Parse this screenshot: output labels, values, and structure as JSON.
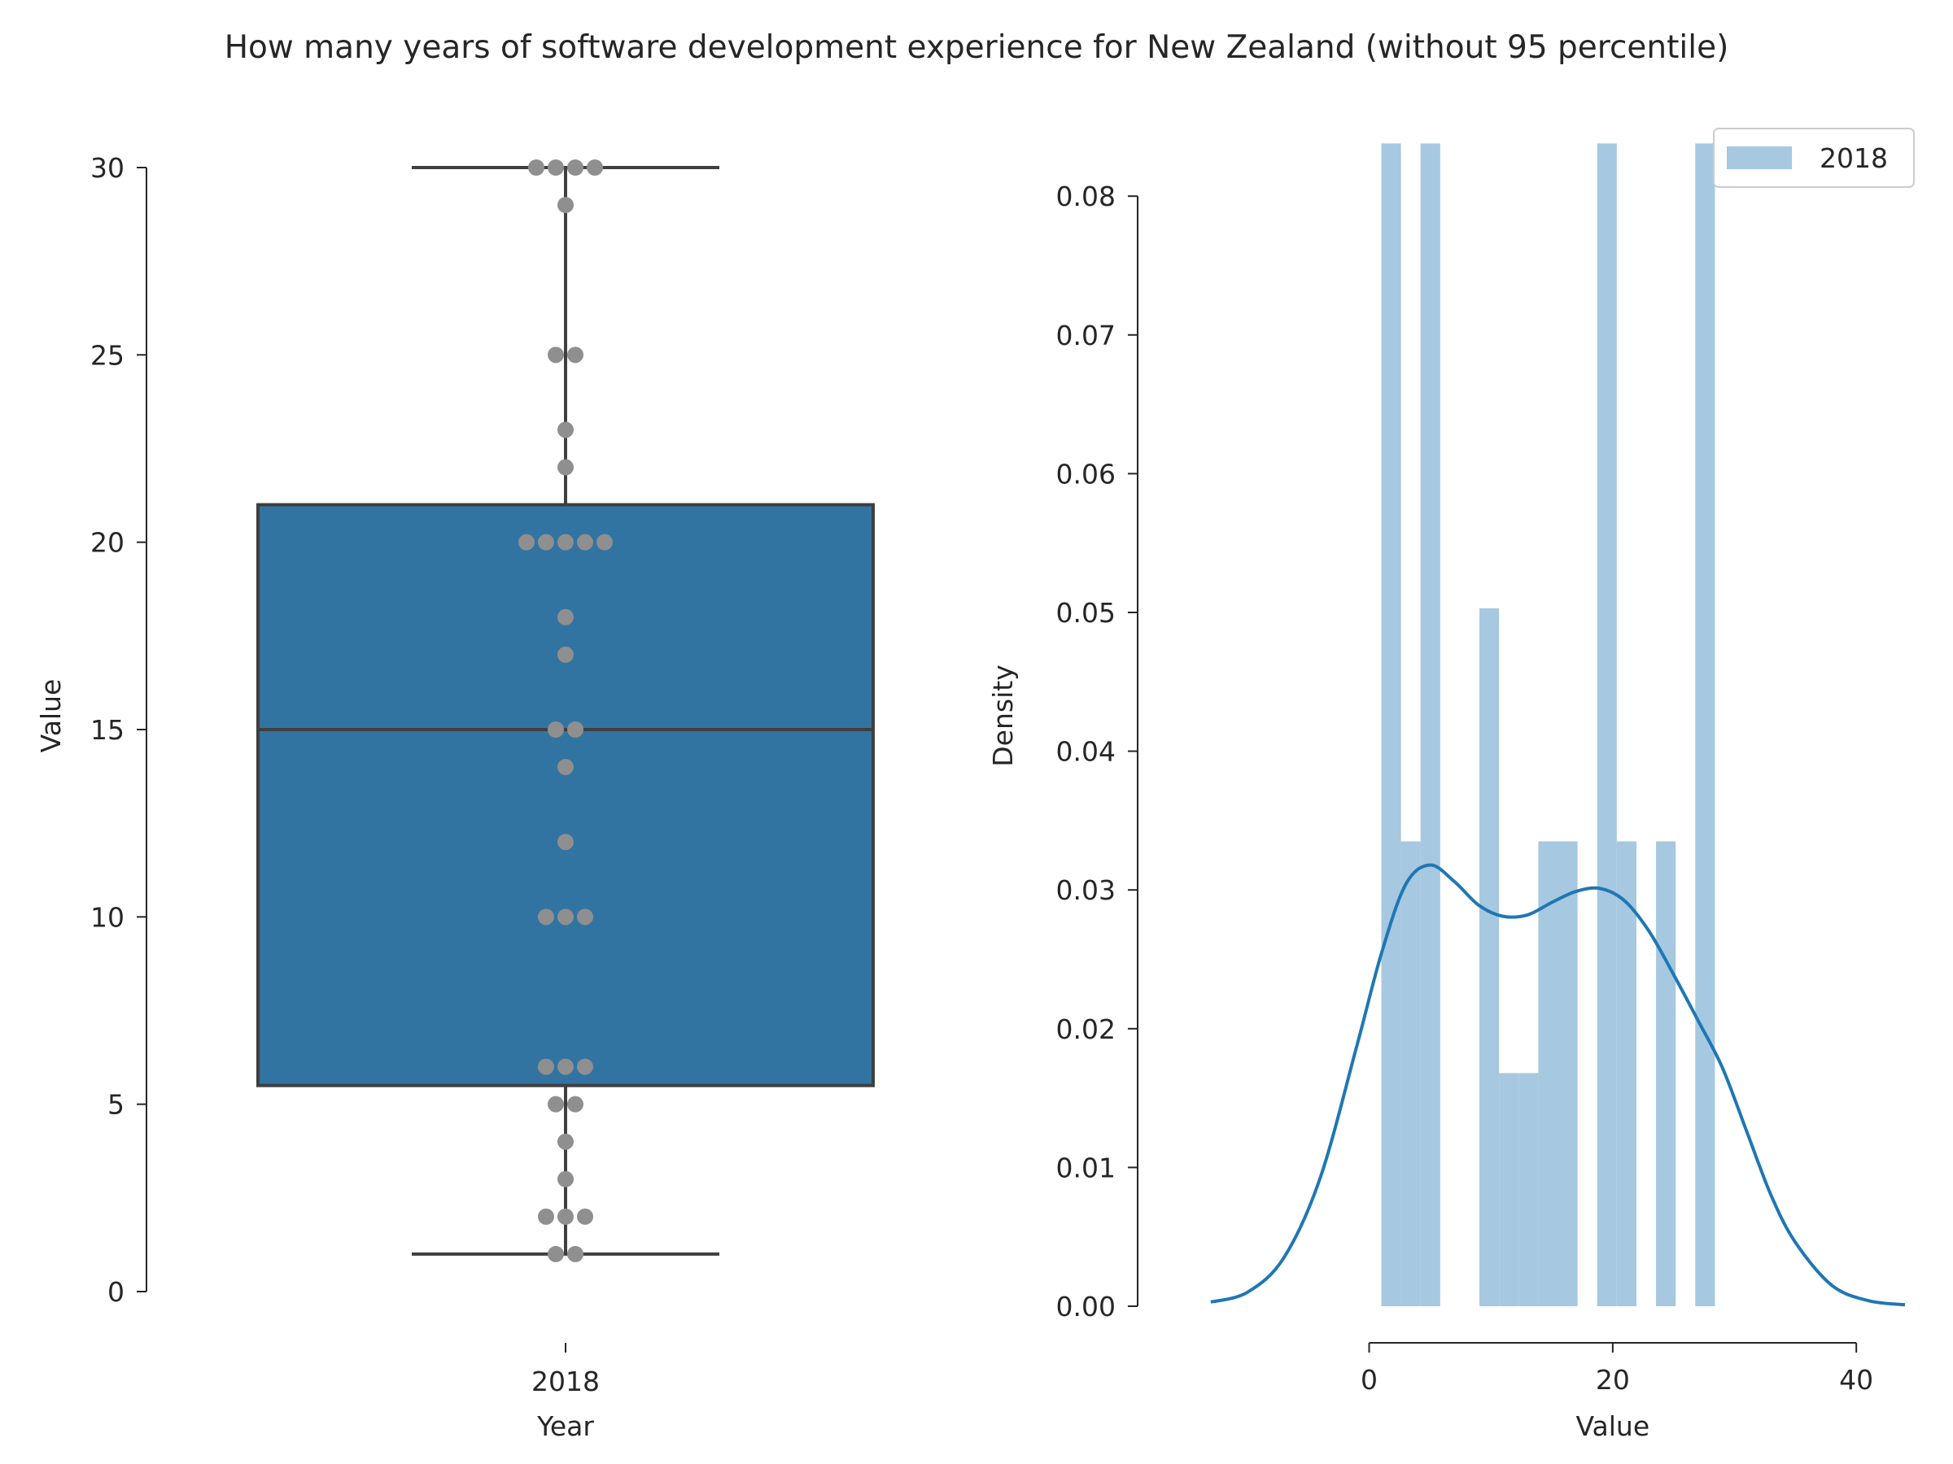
{
  "figure": {
    "title": "How many years of software development experience for New Zealand (without 95 percentile)"
  },
  "colors": {
    "box_fill": "#3274a1",
    "box_edge": "#3f3f3f",
    "points": "#8f8f8f",
    "hist_fill": "#a6c8e0",
    "kde_line": "#1f77b4",
    "axis": "#262626"
  },
  "chart_data": [
    {
      "type": "box",
      "xlabel": "Year",
      "ylabel": "Value",
      "categories": [
        "2018"
      ],
      "ylim": [
        0,
        30
      ],
      "yticks": [
        0,
        5,
        10,
        15,
        20,
        25,
        30
      ],
      "box": {
        "whisker_low": 1,
        "q1": 5.5,
        "median": 15,
        "q3": 21,
        "whisker_high": 30
      },
      "points": [
        1,
        1,
        2,
        2,
        2,
        3,
        4,
        5,
        5,
        6,
        6,
        6,
        10,
        10,
        10,
        12,
        14,
        15,
        15,
        17,
        18,
        20,
        20,
        20,
        20,
        20,
        22,
        23,
        25,
        25,
        29,
        30,
        30,
        30,
        30
      ],
      "grid": false
    },
    {
      "type": "histogram",
      "xlabel": "Value",
      "ylabel": "Density",
      "xlim": [
        -14,
        45
      ],
      "ylim": [
        0,
        0.083
      ],
      "xticks": [
        0,
        20,
        40
      ],
      "yticks": [
        0.0,
        0.01,
        0.02,
        0.03,
        0.04,
        0.05,
        0.06,
        0.07,
        0.08
      ],
      "ytick_labels": [
        "0.00",
        "0.01",
        "0.02",
        "0.03",
        "0.04",
        "0.05",
        "0.06",
        "0.07",
        "0.08"
      ],
      "legend": {
        "labels": [
          "2018"
        ],
        "placement": "upper right"
      },
      "bins": {
        "edges": [
          1.0,
          2.611,
          4.222,
          5.833,
          7.444,
          9.056,
          10.667,
          12.278,
          13.889,
          15.5,
          17.111,
          18.722,
          20.333,
          21.944,
          23.556,
          25.167,
          26.778,
          28.389,
          30.0
        ],
        "density": [
          0.0838,
          0.0335,
          0.0838,
          0,
          0,
          0.0503,
          0.0168,
          0.0168,
          0.0335,
          0.0335,
          0,
          0.0838,
          0.0335,
          0,
          0.0335,
          0,
          0.0838,
          0
        ]
      },
      "kde": {
        "x": [
          -13,
          -10,
          -7,
          -4,
          -1,
          1,
          3,
          5,
          7,
          9,
          11,
          13,
          15,
          17,
          19,
          21,
          23,
          25,
          27,
          29,
          31,
          33,
          35,
          38,
          41,
          44
        ],
        "y": [
          0.0003,
          0.001,
          0.0035,
          0.0093,
          0.0188,
          0.0254,
          0.0304,
          0.0318,
          0.0306,
          0.0289,
          0.0281,
          0.0282,
          0.0291,
          0.0299,
          0.0301,
          0.0292,
          0.027,
          0.0239,
          0.0206,
          0.0172,
          0.0126,
          0.008,
          0.0046,
          0.0015,
          0.0004,
          0.0001
        ]
      },
      "grid": false
    }
  ]
}
